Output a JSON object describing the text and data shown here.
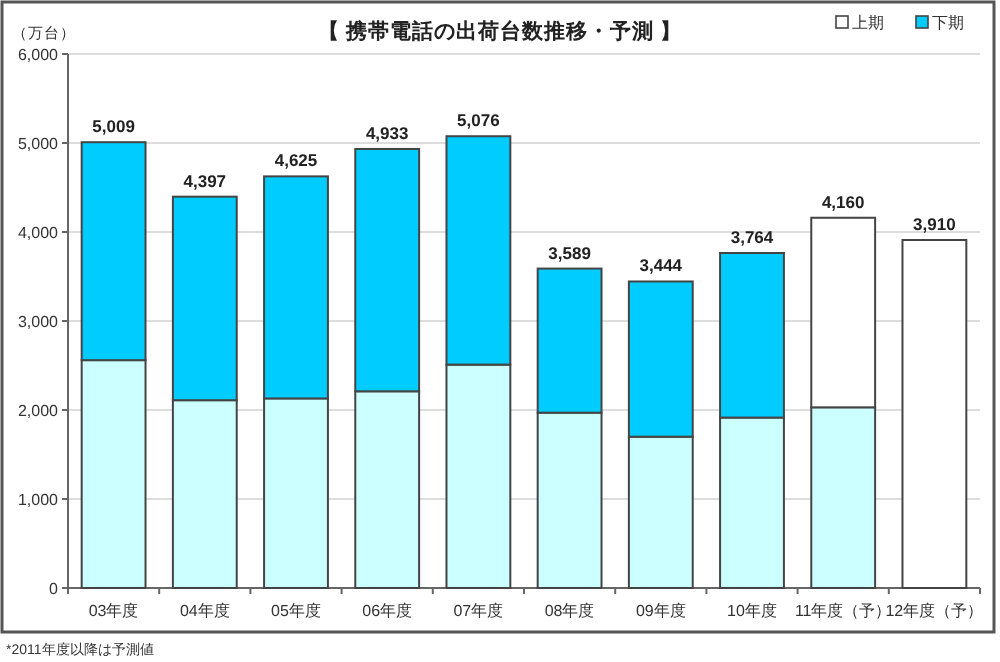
{
  "chart_data": {
    "type": "bar",
    "title": "【 携帯電話の出荷台数推移・予測 】",
    "ylabel": "（万台）",
    "categories": [
      "03年度",
      "04年度",
      "05年度",
      "06年度",
      "07年度",
      "08年度",
      "09年度",
      "10年度",
      "11年度（予）",
      "12年度（予）"
    ],
    "stacked": true,
    "series": [
      {
        "name": "上期",
        "color": "#ffffff",
        "colors": [
          "#ccffff",
          "#ccffff",
          "#ccffff",
          "#ccffff",
          "#ccffff",
          "#ccffff",
          "#ccffff",
          "#ccffff",
          "#ccffff",
          "#ccffff"
        ],
        "values": [
          2560,
          2110,
          2130,
          2210,
          2510,
          1970,
          1700,
          1915,
          2030,
          null
        ]
      },
      {
        "name": "下期",
        "color": "#00ccff",
        "colors": [
          "#00ccff",
          "#00ccff",
          "#00ccff",
          "#00ccff",
          "#00ccff",
          "#00ccff",
          "#00ccff",
          "#00ccff",
          "#ffffff",
          "#ffffff"
        ],
        "values": [
          2449,
          2287,
          2495,
          2723,
          2566,
          1619,
          1744,
          1849,
          2130,
          3910
        ]
      }
    ],
    "totals": [
      "5,009",
      "4,397",
      "4,625",
      "4,933",
      "5,076",
      "3,589",
      "3,444",
      "3,764",
      "4,160",
      "3,910"
    ],
    "ylim": [
      0,
      6000
    ],
    "yticks": [
      {
        "value": 0,
        "label": "0"
      },
      {
        "value": 1000,
        "label": "1,000"
      },
      {
        "value": 2000,
        "label": "2,000"
      },
      {
        "value": 3000,
        "label": "3,000"
      },
      {
        "value": 4000,
        "label": "4,000"
      },
      {
        "value": 5000,
        "label": "5,000"
      },
      {
        "value": 6000,
        "label": "6,000"
      }
    ],
    "grid": "y",
    "legend": "top right",
    "annotations": [
      "*2011年度以降は予測値"
    ]
  }
}
